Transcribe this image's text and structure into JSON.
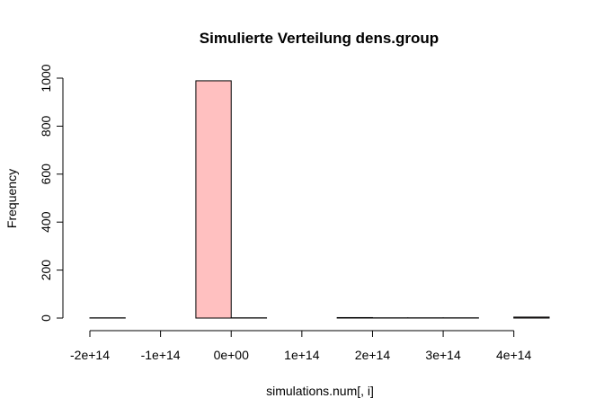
{
  "chart_data": {
    "type": "bar",
    "title": "Simulierte Verteilung dens.group",
    "xlabel": "simulations.num[, i]",
    "ylabel": "Frequency",
    "bins": [
      {
        "x0": -200000000000000.0,
        "x1": -150000000000000.0,
        "count": 1
      },
      {
        "x0": -150000000000000.0,
        "x1": -100000000000000.0,
        "count": 0
      },
      {
        "x0": -100000000000000.0,
        "x1": -50000000000000.0,
        "count": 0
      },
      {
        "x0": -50000000000000.0,
        "x1": 0.0,
        "count": 989
      },
      {
        "x0": 0.0,
        "x1": 50000000000000.0,
        "count": 1
      },
      {
        "x0": 50000000000000.0,
        "x1": 100000000000000.0,
        "count": 0
      },
      {
        "x0": 100000000000000.0,
        "x1": 150000000000000.0,
        "count": 0
      },
      {
        "x0": 150000000000000.0,
        "x1": 200000000000000.0,
        "count": 2
      },
      {
        "x0": 200000000000000.0,
        "x1": 250000000000000.0,
        "count": 1
      },
      {
        "x0": 250000000000000.0,
        "x1": 300000000000000.0,
        "count": 1
      },
      {
        "x0": 300000000000000.0,
        "x1": 350000000000000.0,
        "count": 1
      },
      {
        "x0": 350000000000000.0,
        "x1": 400000000000000.0,
        "count": 0
      },
      {
        "x0": 400000000000000.0,
        "x1": 450000000000000.0,
        "count": 4
      }
    ],
    "x_ticks": [
      -200000000000000.0,
      -100000000000000.0,
      0,
      100000000000000.0,
      200000000000000.0,
      300000000000000.0,
      400000000000000.0
    ],
    "x_tick_labels": [
      "-2e+14",
      "-1e+14",
      "0e+00",
      "1e+14",
      "2e+14",
      "3e+14",
      "4e+14"
    ],
    "y_ticks": [
      0,
      200,
      400,
      600,
      800,
      1000
    ],
    "y_tick_labels": [
      "0",
      "200",
      "400",
      "600",
      "800",
      "1000"
    ],
    "xlim": [
      -200000000000000.0,
      450000000000000.0
    ],
    "ylim": [
      0,
      1000
    ],
    "bar_fill": "#ffc0c0",
    "bar_stroke": "#000000",
    "grid": false,
    "legend": "none"
  }
}
